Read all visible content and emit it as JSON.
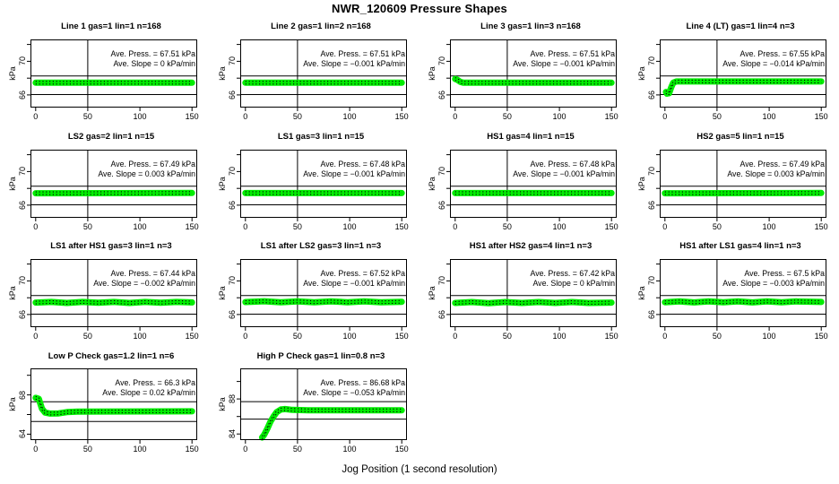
{
  "page_title": "NWR_120609  Pressure Shapes",
  "xlabel": "Jog Position (1 second resolution)",
  "ylabel": "kPa",
  "colors": {
    "series": "#00ee00",
    "axis": "#000000",
    "background": "#ffffff"
  },
  "chart_data": [
    {
      "type": "scatter",
      "title": "Line 1 gas=1 lin=1 n=168",
      "press_label": "Ave. Press. =  67.51  kPa",
      "slope_label": "Ave. Slope =  0  kPa/min",
      "ave_press_kpa": 67.51,
      "ave_slope_kpa_per_min": 0,
      "xlim": [
        -5,
        155
      ],
      "ylim": [
        64.5,
        72.6
      ],
      "xticks": [
        0,
        50,
        100,
        150
      ],
      "yticks": [
        66,
        68,
        70,
        72
      ],
      "ytick_labels": [
        66,
        70
      ],
      "reflines_y": [
        68.25,
        66.05
      ],
      "vline_x": 50,
      "shape": [
        [
          0,
          67.45
        ],
        [
          150,
          67.45
        ]
      ]
    },
    {
      "type": "scatter",
      "title": "Line 2 gas=1 lin=2 n=168",
      "press_label": "Ave. Press. =  67.51  kPa",
      "slope_label": "Ave. Slope =  −0.001  kPa/min",
      "ave_press_kpa": 67.51,
      "ave_slope_kpa_per_min": -0.001,
      "xlim": [
        -5,
        155
      ],
      "ylim": [
        64.5,
        72.6
      ],
      "xticks": [
        0,
        50,
        100,
        150
      ],
      "yticks": [
        66,
        68,
        70,
        72
      ],
      "ytick_labels": [
        66,
        70
      ],
      "reflines_y": [
        68.25,
        66.05
      ],
      "vline_x": 50,
      "shape": [
        [
          0,
          67.45
        ],
        [
          150,
          67.45
        ]
      ]
    },
    {
      "type": "scatter",
      "title": "Line 3 gas=1 lin=3 n=168",
      "press_label": "Ave. Press. =  67.51  kPa",
      "slope_label": "Ave. Slope =  −0.001  kPa/min",
      "ave_press_kpa": 67.51,
      "ave_slope_kpa_per_min": -0.001,
      "xlim": [
        -5,
        155
      ],
      "ylim": [
        64.5,
        72.6
      ],
      "xticks": [
        0,
        50,
        100,
        150
      ],
      "yticks": [
        66,
        68,
        70,
        72
      ],
      "ytick_labels": [
        66,
        70
      ],
      "reflines_y": [
        68.25,
        66.05
      ],
      "vline_x": 50,
      "shape": [
        [
          0,
          67.9
        ],
        [
          2,
          67.8
        ],
        [
          5,
          67.55
        ],
        [
          8,
          67.45
        ],
        [
          150,
          67.45
        ]
      ]
    },
    {
      "type": "scatter",
      "title": "Line 4 (LT) gas=1 lin=4 n=3",
      "press_label": "Ave. Press. =  67.55  kPa",
      "slope_label": "Ave. Slope =  −0.014  kPa/min",
      "ave_press_kpa": 67.55,
      "ave_slope_kpa_per_min": -0.014,
      "xlim": [
        -5,
        155
      ],
      "ylim": [
        64.5,
        72.6
      ],
      "xticks": [
        0,
        50,
        100,
        150
      ],
      "yticks": [
        66,
        68,
        70,
        72
      ],
      "ytick_labels": [
        66,
        70
      ],
      "reflines_y": [
        68.25,
        66.05
      ],
      "vline_x": 50,
      "shape": [
        [
          1,
          66.35
        ],
        [
          2,
          66.15
        ],
        [
          4,
          66.2
        ],
        [
          6,
          66.9
        ],
        [
          8,
          67.45
        ],
        [
          11,
          67.6
        ],
        [
          150,
          67.6
        ]
      ]
    },
    {
      "type": "scatter",
      "title": "LS2 gas=2 lin=1 n=15",
      "press_label": "Ave. Press. =  67.49  kPa",
      "slope_label": "Ave. Slope =  0.003  kPa/min",
      "ave_press_kpa": 67.49,
      "ave_slope_kpa_per_min": 0.003,
      "xlim": [
        -5,
        155
      ],
      "ylim": [
        64.5,
        72.6
      ],
      "xticks": [
        0,
        50,
        100,
        150
      ],
      "yticks": [
        66,
        68,
        70,
        72
      ],
      "ytick_labels": [
        66,
        70
      ],
      "reflines_y": [
        68.25,
        66.05
      ],
      "vline_x": 50,
      "shape": [
        [
          0,
          67.42
        ],
        [
          150,
          67.45
        ]
      ]
    },
    {
      "type": "scatter",
      "title": "LS1 gas=3 lin=1 n=15",
      "press_label": "Ave. Press. =  67.48  kPa",
      "slope_label": "Ave. Slope =  −0.001  kPa/min",
      "ave_press_kpa": 67.48,
      "ave_slope_kpa_per_min": -0.001,
      "xlim": [
        -5,
        155
      ],
      "ylim": [
        64.5,
        72.6
      ],
      "xticks": [
        0,
        50,
        100,
        150
      ],
      "yticks": [
        66,
        68,
        70,
        72
      ],
      "ytick_labels": [
        66,
        70
      ],
      "reflines_y": [
        68.25,
        66.05
      ],
      "vline_x": 50,
      "shape": [
        [
          0,
          67.44
        ],
        [
          150,
          67.44
        ]
      ]
    },
    {
      "type": "scatter",
      "title": "HS1 gas=4 lin=1 n=15",
      "press_label": "Ave. Press. =  67.48  kPa",
      "slope_label": "Ave. Slope =  −0.001  kPa/min",
      "ave_press_kpa": 67.48,
      "ave_slope_kpa_per_min": -0.001,
      "xlim": [
        -5,
        155
      ],
      "ylim": [
        64.5,
        72.6
      ],
      "xticks": [
        0,
        50,
        100,
        150
      ],
      "yticks": [
        66,
        68,
        70,
        72
      ],
      "ytick_labels": [
        66,
        70
      ],
      "reflines_y": [
        68.25,
        66.05
      ],
      "vline_x": 50,
      "shape": [
        [
          0,
          67.44
        ],
        [
          150,
          67.44
        ]
      ]
    },
    {
      "type": "scatter",
      "title": "HS2 gas=5 lin=1 n=15",
      "press_label": "Ave. Press. =  67.49  kPa",
      "slope_label": "Ave. Slope =  0.003  kPa/min",
      "ave_press_kpa": 67.49,
      "ave_slope_kpa_per_min": 0.003,
      "xlim": [
        -5,
        155
      ],
      "ylim": [
        64.5,
        72.6
      ],
      "xticks": [
        0,
        50,
        100,
        150
      ],
      "yticks": [
        66,
        68,
        70,
        72
      ],
      "ytick_labels": [
        66,
        70
      ],
      "reflines_y": [
        68.25,
        66.05
      ],
      "vline_x": 50,
      "shape": [
        [
          0,
          67.42
        ],
        [
          150,
          67.45
        ]
      ]
    },
    {
      "type": "scatter",
      "title": "LS1 after HS1 gas=3 lin=1 n=3",
      "press_label": "Ave. Press. =  67.44  kPa",
      "slope_label": "Ave. Slope =  −0.002  kPa/min",
      "ave_press_kpa": 67.44,
      "ave_slope_kpa_per_min": -0.002,
      "xlim": [
        -5,
        155
      ],
      "ylim": [
        64.5,
        72.6
      ],
      "xticks": [
        0,
        50,
        100,
        150
      ],
      "yticks": [
        66,
        68,
        70,
        72
      ],
      "ytick_labels": [
        66,
        70
      ],
      "reflines_y": [
        68.25,
        66.05
      ],
      "vline_x": 50,
      "shape": [
        [
          0,
          67.42
        ],
        [
          15,
          67.5
        ],
        [
          30,
          67.38
        ],
        [
          45,
          67.5
        ],
        [
          60,
          67.4
        ],
        [
          75,
          67.5
        ],
        [
          90,
          67.38
        ],
        [
          105,
          67.5
        ],
        [
          120,
          67.4
        ],
        [
          135,
          67.5
        ],
        [
          150,
          67.44
        ]
      ]
    },
    {
      "type": "scatter",
      "title": "LS1 after LS2 gas=3 lin=1 n=3",
      "press_label": "Ave. Press. =  67.52  kPa",
      "slope_label": "Ave. Slope =  −0.001  kPa/min",
      "ave_press_kpa": 67.52,
      "ave_slope_kpa_per_min": -0.001,
      "xlim": [
        -5,
        155
      ],
      "ylim": [
        64.5,
        72.6
      ],
      "xticks": [
        0,
        50,
        100,
        150
      ],
      "yticks": [
        66,
        68,
        70,
        72
      ],
      "ytick_labels": [
        66,
        70
      ],
      "reflines_y": [
        68.25,
        66.05
      ],
      "vline_x": 50,
      "shape": [
        [
          0,
          67.48
        ],
        [
          18,
          67.58
        ],
        [
          34,
          67.46
        ],
        [
          50,
          67.56
        ],
        [
          66,
          67.46
        ],
        [
          82,
          67.56
        ],
        [
          98,
          67.46
        ],
        [
          114,
          67.56
        ],
        [
          130,
          67.46
        ],
        [
          150,
          67.52
        ]
      ]
    },
    {
      "type": "scatter",
      "title": "HS1 after HS2 gas=4 lin=1 n=3",
      "press_label": "Ave. Press. =  67.42  kPa",
      "slope_label": "Ave. Slope =  0  kPa/min",
      "ave_press_kpa": 67.42,
      "ave_slope_kpa_per_min": 0,
      "xlim": [
        -5,
        155
      ],
      "ylim": [
        64.5,
        72.6
      ],
      "xticks": [
        0,
        50,
        100,
        150
      ],
      "yticks": [
        66,
        68,
        70,
        72
      ],
      "ytick_labels": [
        66,
        70
      ],
      "reflines_y": [
        68.25,
        66.05
      ],
      "vline_x": 50,
      "shape": [
        [
          0,
          67.38
        ],
        [
          16,
          67.48
        ],
        [
          32,
          67.36
        ],
        [
          48,
          67.48
        ],
        [
          64,
          67.38
        ],
        [
          80,
          67.48
        ],
        [
          96,
          67.38
        ],
        [
          112,
          67.48
        ],
        [
          128,
          67.38
        ],
        [
          150,
          67.42
        ]
      ]
    },
    {
      "type": "scatter",
      "title": "HS1 after LS1 gas=4 lin=1 n=3",
      "press_label": "Ave. Press. =  67.5  kPa",
      "slope_label": "Ave. Slope =  −0.003  kPa/min",
      "ave_press_kpa": 67.5,
      "ave_slope_kpa_per_min": -0.003,
      "xlim": [
        -5,
        155
      ],
      "ylim": [
        64.5,
        72.6
      ],
      "xticks": [
        0,
        50,
        100,
        150
      ],
      "yticks": [
        66,
        68,
        70,
        72
      ],
      "ytick_labels": [
        66,
        70
      ],
      "reflines_y": [
        68.25,
        66.05
      ],
      "vline_x": 50,
      "shape": [
        [
          0,
          67.46
        ],
        [
          14,
          67.56
        ],
        [
          28,
          67.44
        ],
        [
          42,
          67.56
        ],
        [
          56,
          67.46
        ],
        [
          70,
          67.56
        ],
        [
          84,
          67.44
        ],
        [
          98,
          67.56
        ],
        [
          112,
          67.46
        ],
        [
          126,
          67.56
        ],
        [
          150,
          67.5
        ]
      ]
    },
    {
      "type": "scatter",
      "title": "Low P Check gas=1.2 lin=1 n=6",
      "press_label": "Ave. Press. =  66.3  kPa",
      "slope_label": "Ave. Slope =  0.02  kPa/min",
      "ave_press_kpa": 66.3,
      "ave_slope_kpa_per_min": 0.02,
      "xlim": [
        -5,
        155
      ],
      "ylim": [
        63.4,
        70.7
      ],
      "xticks": [
        0,
        50,
        100,
        150
      ],
      "yticks": [
        64,
        66,
        68,
        70
      ],
      "ytick_labels": [
        64,
        68
      ],
      "reflines_y": [
        67.3,
        65.3
      ],
      "vline_x": 50,
      "shape": [
        [
          0,
          67.7
        ],
        [
          3,
          67.6
        ],
        [
          6,
          66.6
        ],
        [
          9,
          66.2
        ],
        [
          14,
          66.1
        ],
        [
          22,
          66.12
        ],
        [
          30,
          66.25
        ],
        [
          40,
          66.3
        ],
        [
          150,
          66.33
        ]
      ]
    },
    {
      "type": "scatter",
      "title": "High P Check gas=1 lin=0.8 n=3",
      "press_label": "Ave. Press. =  86.68  kPa",
      "slope_label": "Ave. Slope =  −0.053  kPa/min",
      "ave_press_kpa": 86.68,
      "ave_slope_kpa_per_min": -0.053,
      "xlim": [
        -5,
        155
      ],
      "ylim": [
        83.3,
        91.5
      ],
      "xticks": [
        0,
        50,
        100,
        150
      ],
      "yticks": [
        84,
        86,
        88,
        90
      ],
      "ytick_labels": [
        84,
        88
      ],
      "reflines_y": [
        87.7,
        85.7
      ],
      "vline_x": 50,
      "shape": [
        [
          16,
          83.6
        ],
        [
          18,
          83.9
        ],
        [
          21,
          84.6
        ],
        [
          24,
          85.4
        ],
        [
          27,
          86.0
        ],
        [
          30,
          86.5
        ],
        [
          34,
          86.8
        ],
        [
          38,
          86.85
        ],
        [
          45,
          86.75
        ],
        [
          60,
          86.7
        ],
        [
          150,
          86.7
        ]
      ]
    }
  ]
}
